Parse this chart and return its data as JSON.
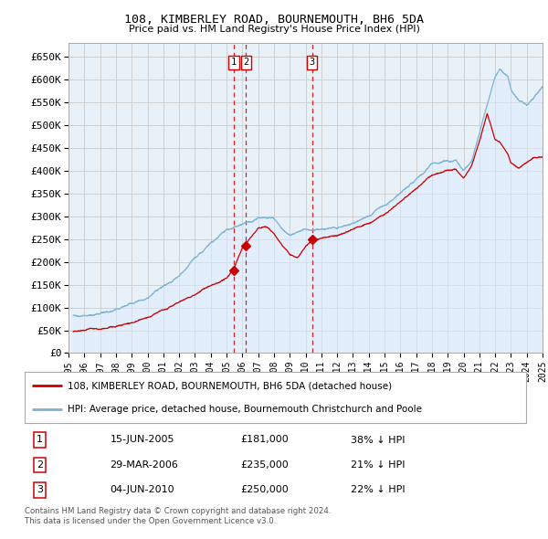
{
  "title": "108, KIMBERLEY ROAD, BOURNEMOUTH, BH6 5DA",
  "subtitle": "Price paid vs. HM Land Registry's House Price Index (HPI)",
  "ylabel_ticks": [
    "£0",
    "£50K",
    "£100K",
    "£150K",
    "£200K",
    "£250K",
    "£300K",
    "£350K",
    "£400K",
    "£450K",
    "£500K",
    "£550K",
    "£600K",
    "£650K"
  ],
  "ylim": [
    0,
    680000
  ],
  "xlim_start": 1995.3,
  "xlim_end": 2025.0,
  "sale_dates": [
    2005.46,
    2006.24,
    2010.42
  ],
  "sale_prices": [
    181000,
    235000,
    250000
  ],
  "sale_labels": [
    "1",
    "2",
    "3"
  ],
  "legend_sale": "108, KIMBERLEY ROAD, BOURNEMOUTH, BH6 5DA (detached house)",
  "legend_hpi": "HPI: Average price, detached house, Bournemouth Christchurch and Poole",
  "table_rows": [
    [
      "1",
      "15-JUN-2005",
      "£181,000",
      "38% ↓ HPI"
    ],
    [
      "2",
      "29-MAR-2006",
      "£235,000",
      "21% ↓ HPI"
    ],
    [
      "3",
      "04-JUN-2010",
      "£250,000",
      "22% ↓ HPI"
    ]
  ],
  "footer": "Contains HM Land Registry data © Crown copyright and database right 2024.\nThis data is licensed under the Open Government Licence v3.0.",
  "sale_line_color": "#cc0000",
  "hpi_line_color": "#7fb3d3",
  "hpi_fill_color": "#ddeeff",
  "grid_color": "#cccccc",
  "bg_color": "#ffffff",
  "plot_bg_color": "#e8f0f8"
}
